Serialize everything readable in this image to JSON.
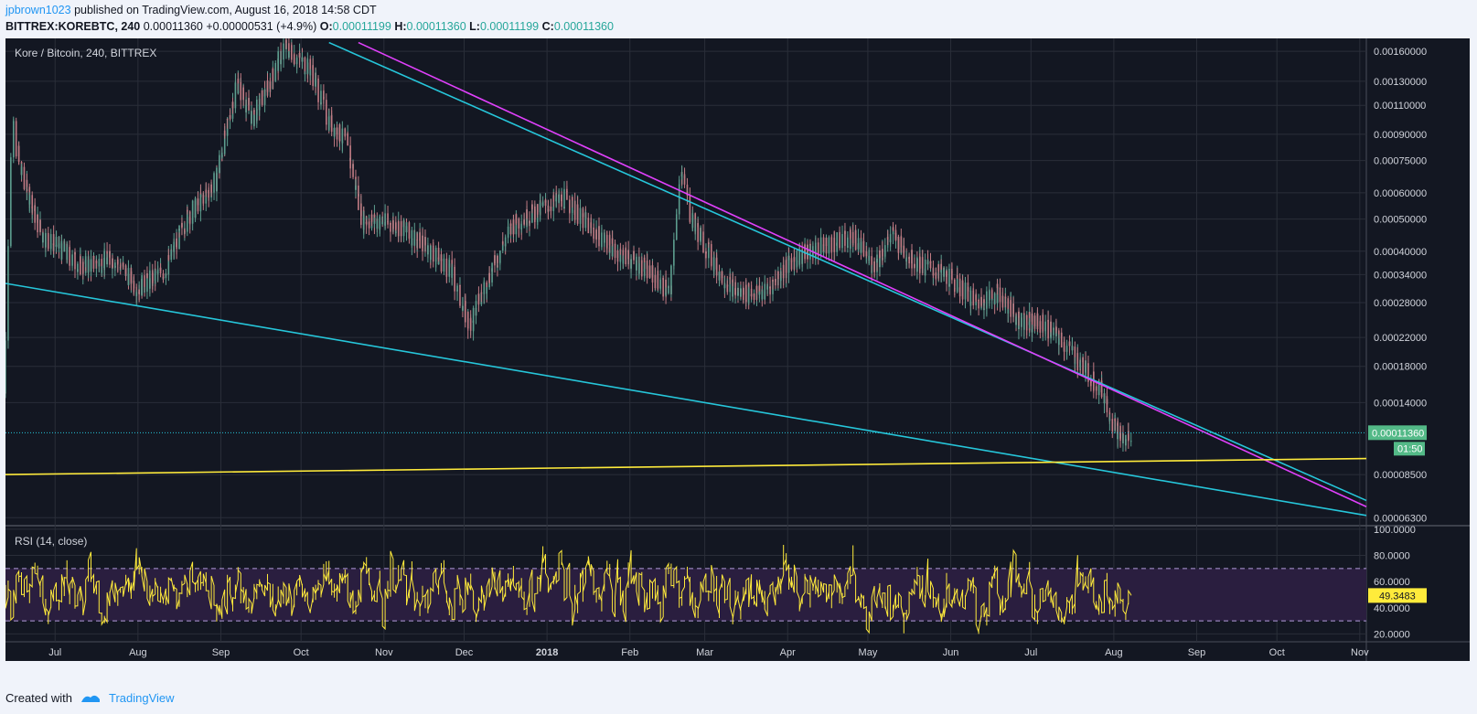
{
  "header": {
    "user": "jpbrown1023",
    "published": "published on TradingView.com, August 16, 2018 14:58 CDT",
    "symbol": "BITTREX:KOREBTC, 240",
    "last": "0.00011360",
    "change": "+0.00000531 (+4.9%)",
    "o_label": "O:",
    "o": "0.00011199",
    "h_label": "H:",
    "h": "0.00011360",
    "l_label": "L:",
    "l": "0.00011199",
    "c_label": "C:",
    "c": "0.00011360"
  },
  "footer": {
    "created_with": "Created with",
    "brand": "TradingView"
  },
  "colors": {
    "background": "#131722",
    "grid": "#2a2e39",
    "up": "#5d9e8f",
    "down": "#c27b84",
    "cyan": "#26c6da",
    "magenta": "#e040fb",
    "yellow": "#ffeb3b",
    "rsi_band": "#2a1e3f",
    "price_badge": "#53b987"
  },
  "chart_data": [
    {
      "type": "candlestick",
      "title": "Kore / Bitcoin, 240, BITTREX",
      "scale": "log",
      "ylim": [
        6e-05,
        0.00175
      ],
      "y_ticks": [
        "0.00160000",
        "0.00130000",
        "0.00110000",
        "0.00090000",
        "0.00075000",
        "0.00060000",
        "0.00050000",
        "0.00040000",
        "0.00034000",
        "0.00028000",
        "0.00022000",
        "0.00018000",
        "0.00014000",
        "0.00011360",
        "0.00008500",
        "0.00006300"
      ],
      "x_ticks": [
        "Jul",
        "Aug",
        "Sep",
        "Oct",
        "Nov",
        "Dec",
        "2018",
        "Feb",
        "Mar",
        "Apr",
        "May",
        "Jun",
        "Jul",
        "Aug",
        "Sep",
        "Oct",
        "Nov"
      ],
      "current_price": "0.00011360",
      "countdown": "01:50",
      "price_path": [
        {
          "d": "2017-06-21",
          "v": 0.00015
        },
        {
          "d": "2017-06-24",
          "v": 0.001
        },
        {
          "d": "2017-06-27",
          "v": 0.0007
        },
        {
          "d": "2017-07-05",
          "v": 0.00045
        },
        {
          "d": "2017-07-20",
          "v": 0.00036
        },
        {
          "d": "2017-08-01",
          "v": 0.00038
        },
        {
          "d": "2017-08-10",
          "v": 0.00031
        },
        {
          "d": "2017-08-20",
          "v": 0.00035
        },
        {
          "d": "2017-08-28",
          "v": 0.0005
        },
        {
          "d": "2017-09-08",
          "v": 0.00065
        },
        {
          "d": "2017-09-16",
          "v": 0.0013
        },
        {
          "d": "2017-09-22",
          "v": 0.001
        },
        {
          "d": "2017-09-30",
          "v": 0.0014
        },
        {
          "d": "2017-10-04",
          "v": 0.00165
        },
        {
          "d": "2017-10-14",
          "v": 0.0014
        },
        {
          "d": "2017-10-20",
          "v": 0.001
        },
        {
          "d": "2017-10-27",
          "v": 0.00085
        },
        {
          "d": "2017-11-02",
          "v": 0.0005
        },
        {
          "d": "2017-11-15",
          "v": 0.00048
        },
        {
          "d": "2017-11-25",
          "v": 0.00042
        },
        {
          "d": "2017-12-05",
          "v": 0.00035
        },
        {
          "d": "2017-12-12",
          "v": 0.00024
        },
        {
          "d": "2017-12-20",
          "v": 0.00035
        },
        {
          "d": "2017-12-28",
          "v": 0.00048
        },
        {
          "d": "2018-01-10",
          "v": 0.00055
        },
        {
          "d": "2018-01-17",
          "v": 0.00058
        },
        {
          "d": "2018-01-25",
          "v": 0.00048
        },
        {
          "d": "2018-02-05",
          "v": 0.0004
        },
        {
          "d": "2018-02-15",
          "v": 0.00036
        },
        {
          "d": "2018-02-25",
          "v": 0.0003
        },
        {
          "d": "2018-03-01",
          "v": 0.00072
        },
        {
          "d": "2018-03-05",
          "v": 0.0005
        },
        {
          "d": "2018-03-15",
          "v": 0.00035
        },
        {
          "d": "2018-03-22",
          "v": 0.0003
        },
        {
          "d": "2018-04-01",
          "v": 0.0003
        },
        {
          "d": "2018-04-12",
          "v": 0.00038
        },
        {
          "d": "2018-04-25",
          "v": 0.00042
        },
        {
          "d": "2018-05-05",
          "v": 0.00044
        },
        {
          "d": "2018-05-12",
          "v": 0.00036
        },
        {
          "d": "2018-05-19",
          "v": 0.00045
        },
        {
          "d": "2018-05-26",
          "v": 0.00038
        },
        {
          "d": "2018-06-10",
          "v": 0.00033
        },
        {
          "d": "2018-06-20",
          "v": 0.00028
        },
        {
          "d": "2018-06-28",
          "v": 0.0003
        },
        {
          "d": "2018-07-05",
          "v": 0.00025
        },
        {
          "d": "2018-07-15",
          "v": 0.00024
        },
        {
          "d": "2018-07-25",
          "v": 0.0002
        },
        {
          "d": "2018-08-01",
          "v": 0.00017
        },
        {
          "d": "2018-08-06",
          "v": 0.00015
        },
        {
          "d": "2018-08-10",
          "v": 0.00012
        },
        {
          "d": "2018-08-14",
          "v": 0.000105
        },
        {
          "d": "2018-08-16",
          "v": 0.0001136
        }
      ],
      "trendlines": [
        {
          "name": "upper-cyan-trendline",
          "color": "cyan",
          "from": {
            "d": "2017-10-20",
            "v": 0.0017
          },
          "to": {
            "d": "2018-11-12",
            "v": 7.1e-05
          }
        },
        {
          "name": "upper-magenta-trendline",
          "color": "magenta",
          "from": {
            "d": "2017-10-31",
            "v": 0.0017
          },
          "to": {
            "d": "2018-11-12",
            "v": 6.8e-05
          }
        },
        {
          "name": "lower-cyan-trendline",
          "color": "cyan",
          "from": {
            "d": "2017-06-21",
            "v": 0.00032
          },
          "to": {
            "d": "2018-11-12",
            "v": 6.4e-05
          }
        },
        {
          "name": "support-yellow-trendline",
          "color": "yellow",
          "from": {
            "d": "2017-06-21",
            "v": 8.5e-05
          },
          "to": {
            "d": "2018-11-12",
            "v": 9.5e-05
          }
        }
      ]
    },
    {
      "type": "line",
      "title": "RSI (14, close)",
      "ylim": [
        14,
        102
      ],
      "y_ticks": [
        "100.0000",
        "80.0000",
        "60.0000",
        "40.0000",
        "20.0000"
      ],
      "bands": [
        30,
        70
      ],
      "current_value": "49.3483",
      "value": 49.3483
    }
  ]
}
